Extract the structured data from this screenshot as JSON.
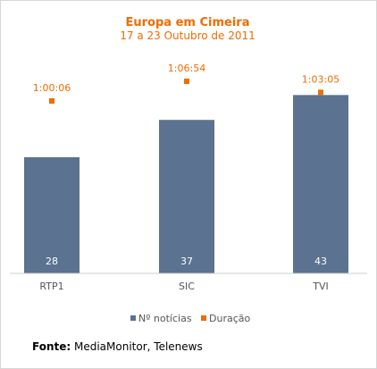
{
  "chart_data": {
    "type": "bar",
    "title": "Europa em Cimeira",
    "subtitle": "17 a 23 Outubro de 2011",
    "categories": [
      "RTP1",
      "SIC",
      "TVI"
    ],
    "series": [
      {
        "name": "Nº notícias",
        "values": [
          28,
          37,
          43
        ],
        "color": "#5b7290",
        "kind": "bar",
        "data_labels": [
          "28",
          "37",
          "43"
        ]
      },
      {
        "name": "Duração",
        "values": [
          "1:00:06",
          "1:06:54",
          "1:03:05"
        ],
        "value_seconds": [
          3606,
          4014,
          3785
        ],
        "color": "#ef6c00",
        "kind": "marker",
        "data_labels": [
          "1:00:06",
          "1:06:54",
          "1:03:05"
        ]
      }
    ],
    "grid": false,
    "legend_position": "bottom"
  },
  "source": {
    "label": "Fonte:",
    "text": " MediaMonitor, Telenews"
  }
}
